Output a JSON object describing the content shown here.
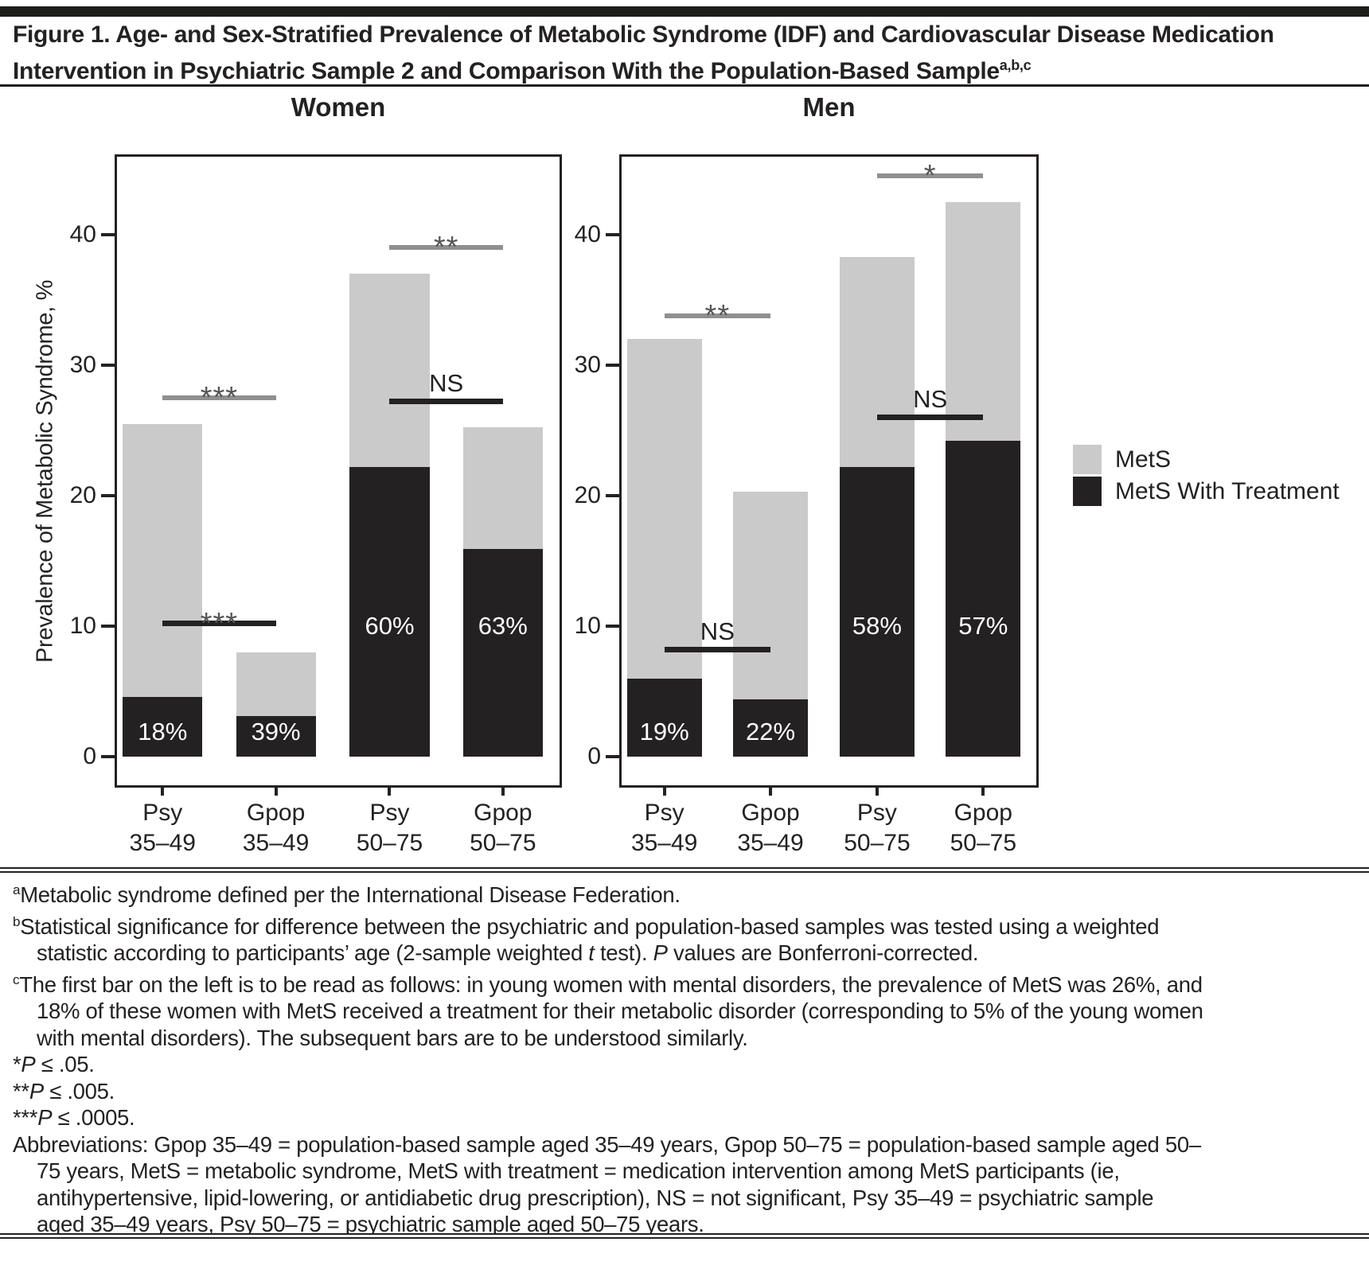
{
  "figure": {
    "title": "Figure 1. Age- and Sex-Stratified Prevalence of Metabolic Syndrome (IDF) and Cardiovascular Disease Medication Intervention in Psychiatric Sample 2 and Comparison With the Population-Based Sample",
    "title_superscript": "a,b,c"
  },
  "chart_data": {
    "type": "bar",
    "stacked_overlay": true,
    "title": "Age- and Sex-Stratified Prevalence of Metabolic Syndrome (IDF) and Cardiovascular Disease Medication Intervention",
    "ylabel": "Prevalence of Metabolic Syndrome, %",
    "yticks": [
      0,
      10,
      20,
      30,
      40
    ],
    "ylim": [
      0,
      46
    ],
    "grid": false,
    "legend_position": "right",
    "categories": [
      "Psy 35–49",
      "Gpop 35–49",
      "Psy 50–75",
      "Gpop 50–75"
    ],
    "legend": [
      {
        "label": "MetS",
        "color": "#cacaca"
      },
      {
        "label": "MetS With Treatment",
        "color": "#242122"
      }
    ],
    "panels": [
      {
        "title": "Women",
        "mets_total": [
          25.5,
          8.0,
          37.0,
          25.2
        ],
        "mets_with_treatment": [
          4.6,
          3.1,
          22.2,
          15.9
        ],
        "treatment_pct_labels": [
          "18%",
          "39%",
          "60%",
          "63%"
        ],
        "significance": [
          {
            "from": 0,
            "to": 1,
            "y": 27.3,
            "label": "***",
            "style": "gray"
          },
          {
            "from": 0,
            "to": 1,
            "y": 10.0,
            "label": "***",
            "style": "black"
          },
          {
            "from": 2,
            "to": 3,
            "y": 38.8,
            "label": "**",
            "style": "gray"
          },
          {
            "from": 2,
            "to": 3,
            "y": 27.0,
            "label": "NS",
            "style": "black"
          }
        ]
      },
      {
        "title": "Men",
        "mets_total": [
          32.0,
          20.3,
          38.3,
          42.5
        ],
        "mets_with_treatment": [
          6.0,
          4.4,
          22.2,
          24.2
        ],
        "treatment_pct_labels": [
          "19%",
          "22%",
          "58%",
          "57%"
        ],
        "significance": [
          {
            "from": 0,
            "to": 1,
            "y": 33.6,
            "label": "**",
            "style": "gray"
          },
          {
            "from": 0,
            "to": 1,
            "y": 8.0,
            "label": "NS",
            "style": "black"
          },
          {
            "from": 2,
            "to": 3,
            "y": 44.3,
            "label": "*",
            "style": "gray"
          },
          {
            "from": 2,
            "to": 3,
            "y": 25.8,
            "label": "NS",
            "style": "black"
          }
        ]
      }
    ]
  },
  "colors": {
    "bar_light": "#cacaca",
    "bar_dark": "#242122",
    "sig_gray": "#8f8f8f",
    "sig_black": "#242122",
    "rule": "#1d1d1b"
  },
  "footnotes": [
    {
      "hang": true,
      "segments": [
        {
          "t": "a",
          "sup": true
        },
        {
          "t": "Metabolic syndrome defined per the International Disease Federation."
        }
      ]
    },
    {
      "hang": true,
      "segments": [
        {
          "t": "b",
          "sup": true
        },
        {
          "t": "Statistical significance for difference between the psychiatric and population-based samples was tested using a weighted statistic according to participants’ age (2-sample weighted "
        },
        {
          "t": "t",
          "italic": true
        },
        {
          "t": " test). "
        },
        {
          "t": "P",
          "italic": true
        },
        {
          "t": " values are Bonferroni-corrected."
        }
      ]
    },
    {
      "hang": true,
      "segments": [
        {
          "t": "c",
          "sup": true
        },
        {
          "t": "The first bar on the left is to be read as follows: in young women with mental disorders, the prevalence of MetS was 26%, and 18% of these women with MetS received a treatment for their metabolic disorder (corresponding to 5% of the young women with mental disorders). The subsequent bars are to be understood similarly."
        }
      ]
    },
    {
      "segments": [
        {
          "t": "*"
        },
        {
          "t": "P",
          "italic": true
        },
        {
          "t": " ≤ .05."
        }
      ]
    },
    {
      "segments": [
        {
          "t": "**"
        },
        {
          "t": "P",
          "italic": true
        },
        {
          "t": " ≤ .005."
        }
      ]
    },
    {
      "segments": [
        {
          "t": "***"
        },
        {
          "t": "P",
          "italic": true
        },
        {
          "t": " ≤ .0005."
        }
      ]
    },
    {
      "hang": true,
      "segments": [
        {
          "t": "Abbreviations: Gpop 35–49 = population-based sample aged 35–49 years, Gpop 50–75 = population-based sample aged 50–75 years, MetS = metabolic syndrome, MetS with treatment = medication intervention among MetS participants (ie, antihypertensive, lipid-lowering, or antidiabetic drug prescription), NS = not significant, Psy 35–49 = psychiatric sample aged 35–49 years, Psy 50–75 = psychiatric sample aged 50–75 years."
        }
      ]
    }
  ]
}
